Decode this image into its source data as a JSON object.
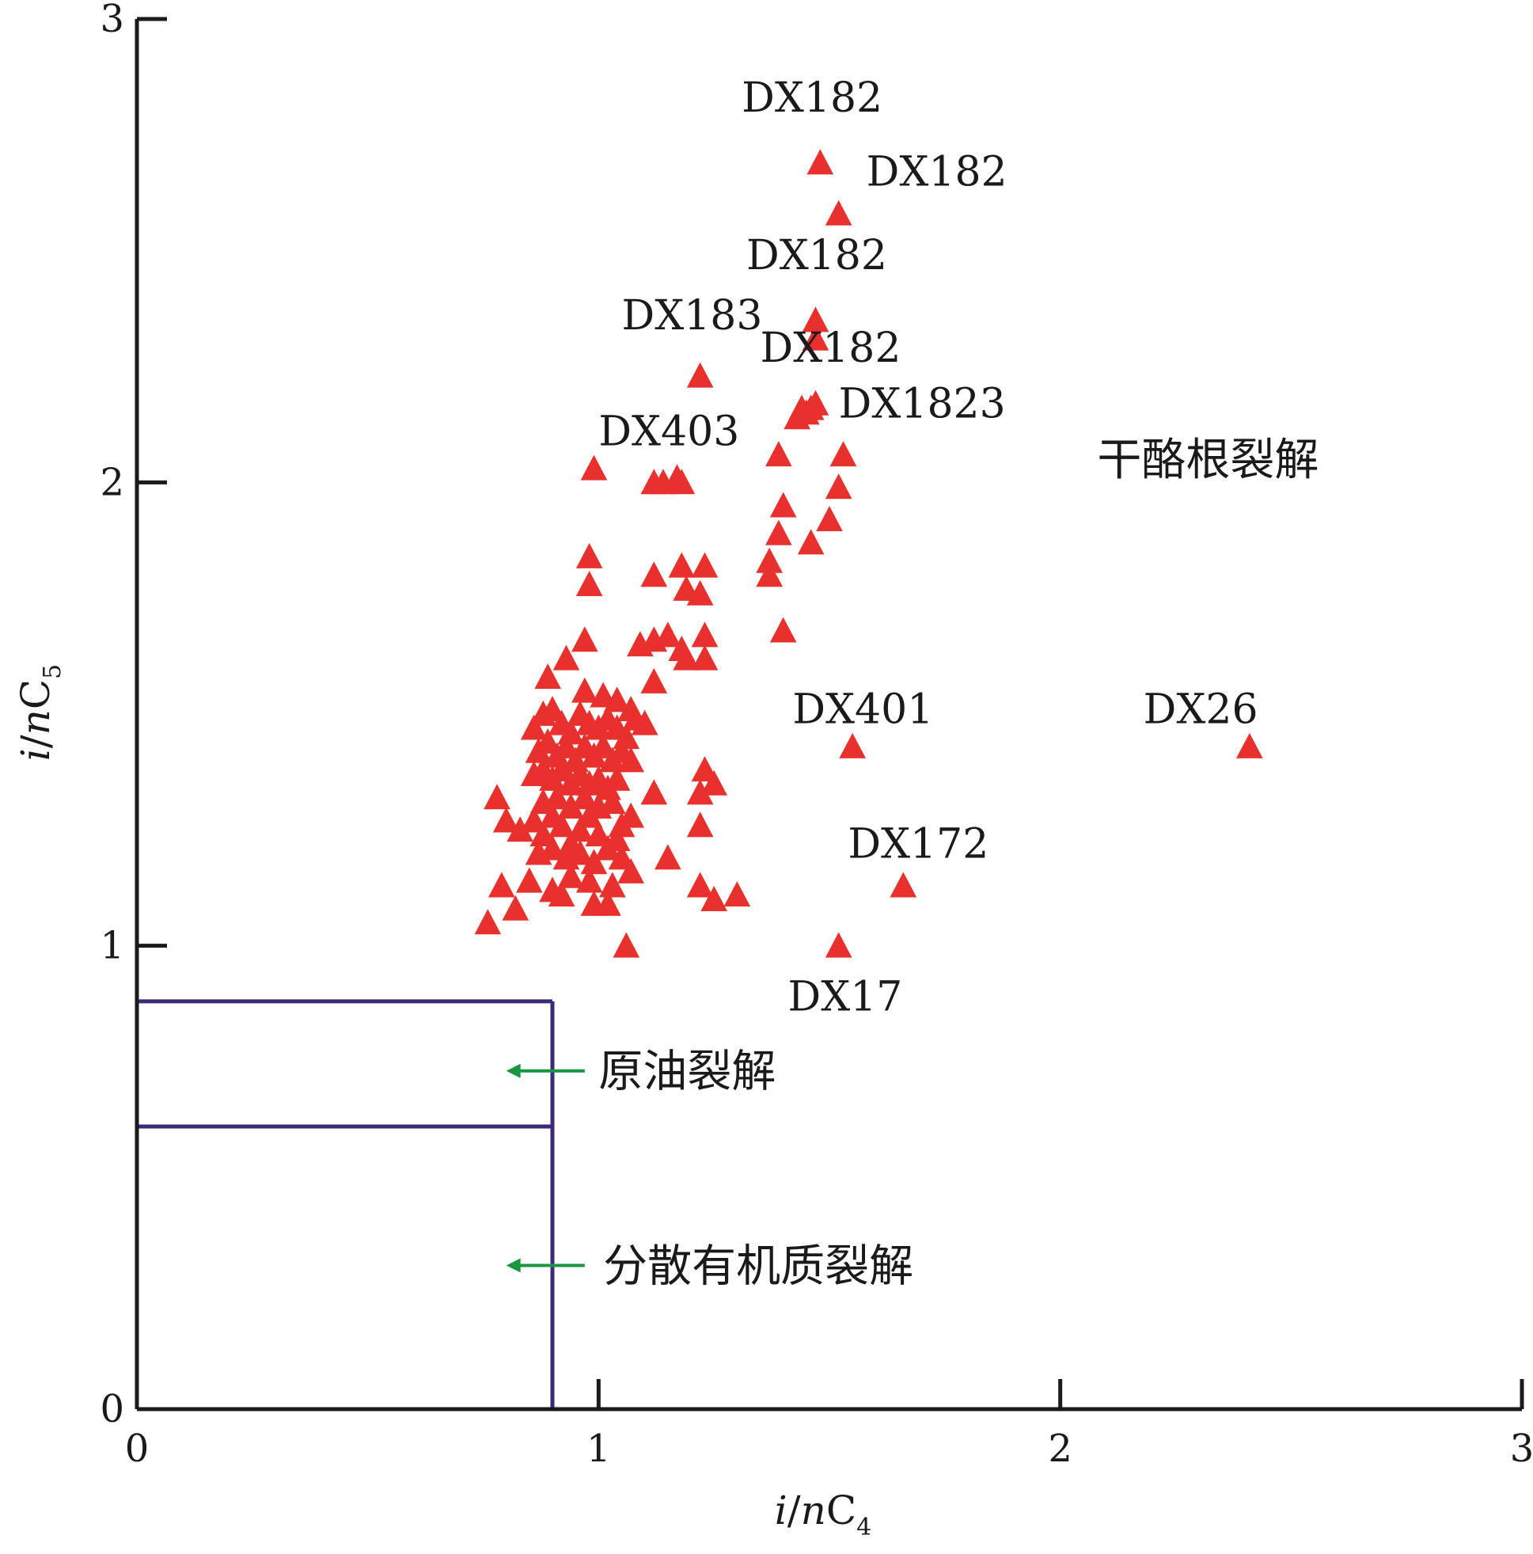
{
  "chart_data": {
    "type": "scatter",
    "xlabel": {
      "italic": "i",
      "slash": "/",
      "italic2": "n",
      "base": "C",
      "sub": "4"
    },
    "ylabel": {
      "italic": "i",
      "slash": "/",
      "italic2": "n",
      "base": "C",
      "sub": "5"
    },
    "xlim": [
      0,
      3
    ],
    "ylim": [
      0,
      3
    ],
    "xticks": [
      0,
      1,
      2,
      3
    ],
    "yticks": [
      0,
      1,
      2,
      3
    ],
    "xtick_labels": [
      "0",
      "1",
      "2",
      "3"
    ],
    "ytick_labels": [
      "0",
      "1",
      "2",
      "3"
    ],
    "grid": false,
    "marker": {
      "shape": "triangle",
      "color": "#e8302d"
    },
    "region_color": "#3b2a78",
    "arrow_color": "#1a9641",
    "regions": {
      "boundary_x": 0.9,
      "upper_y": 0.88,
      "lower_y": 0.61,
      "labels": [
        {
          "text": "干酪根裂解",
          "x": 2.08,
          "y": 2.05
        },
        {
          "text": "原油裂解",
          "x": 1.0,
          "y": 0.73,
          "arrow_from_x": 0.97,
          "arrow_to_x": 0.8
        },
        {
          "text": "分散有机质裂解",
          "x": 1.01,
          "y": 0.31,
          "arrow_from_x": 0.97,
          "arrow_to_x": 0.8
        }
      ]
    },
    "labeled_points": [
      {
        "label": "DX182",
        "x": 1.48,
        "y": 2.69,
        "label_x": 1.31,
        "label_y": 2.8
      },
      {
        "label": "DX182",
        "x": 1.52,
        "y": 2.58,
        "label_x": 1.58,
        "label_y": 2.64
      },
      {
        "label": "DX182",
        "x": 1.47,
        "y": 2.35,
        "label_x": 1.32,
        "label_y": 2.46
      },
      {
        "label": "DX182",
        "x": 1.47,
        "y": 2.31,
        "label_x": 1.35,
        "label_y": 2.26
      },
      {
        "label": "DX183",
        "x": 1.22,
        "y": 2.23,
        "label_x": 1.05,
        "label_y": 2.33
      },
      {
        "label": "DX1823",
        "x": 1.47,
        "y": 2.16,
        "label_x": 1.52,
        "label_y": 2.14
      },
      {
        "label": "DX403",
        "x": 0.99,
        "y": 2.03,
        "label_x": 1.0,
        "label_y": 2.08
      },
      {
        "label": "DX401",
        "x": 1.55,
        "y": 1.43,
        "label_x": 1.42,
        "label_y": 1.48
      },
      {
        "label": "DX26",
        "x": 2.41,
        "y": 1.43,
        "label_x": 2.18,
        "label_y": 1.48
      },
      {
        "label": "DX172",
        "x": 1.66,
        "y": 1.13,
        "label_x": 1.54,
        "label_y": 1.19
      },
      {
        "label": "DX17",
        "x": 1.52,
        "y": 1.0,
        "label_x": 1.41,
        "label_y": 0.86
      }
    ],
    "points": [
      [
        1.48,
        2.69
      ],
      [
        1.52,
        2.58
      ],
      [
        1.47,
        2.35
      ],
      [
        1.47,
        2.31
      ],
      [
        1.22,
        2.23
      ],
      [
        1.43,
        2.14
      ],
      [
        1.45,
        2.15
      ],
      [
        1.46,
        2.16
      ],
      [
        1.47,
        2.17
      ],
      [
        1.44,
        2.16
      ],
      [
        1.39,
        2.06
      ],
      [
        1.53,
        2.06
      ],
      [
        0.99,
        2.03
      ],
      [
        1.12,
        2.0
      ],
      [
        1.14,
        2.0
      ],
      [
        1.17,
        2.01
      ],
      [
        1.18,
        2.0
      ],
      [
        1.52,
        1.99
      ],
      [
        1.4,
        1.95
      ],
      [
        1.5,
        1.92
      ],
      [
        1.39,
        1.89
      ],
      [
        1.46,
        1.87
      ],
      [
        0.98,
        1.84
      ],
      [
        1.12,
        1.8
      ],
      [
        1.18,
        1.82
      ],
      [
        1.23,
        1.82
      ],
      [
        1.37,
        1.83
      ],
      [
        1.37,
        1.8
      ],
      [
        0.98,
        1.78
      ],
      [
        1.19,
        1.77
      ],
      [
        1.22,
        1.76
      ],
      [
        1.4,
        1.68
      ],
      [
        0.97,
        1.66
      ],
      [
        1.09,
        1.65
      ],
      [
        1.12,
        1.66
      ],
      [
        1.15,
        1.67
      ],
      [
        1.18,
        1.64
      ],
      [
        1.23,
        1.67
      ],
      [
        1.23,
        1.62
      ],
      [
        1.19,
        1.62
      ],
      [
        0.93,
        1.62
      ],
      [
        0.89,
        1.58
      ],
      [
        1.12,
        1.57
      ],
      [
        0.97,
        1.55
      ],
      [
        1.01,
        1.54
      ],
      [
        1.04,
        1.53
      ],
      [
        1.07,
        1.51
      ],
      [
        1.08,
        1.49
      ],
      [
        1.1,
        1.48
      ],
      [
        0.86,
        1.47
      ],
      [
        0.88,
        1.5
      ],
      [
        0.9,
        1.51
      ],
      [
        0.92,
        1.48
      ],
      [
        0.94,
        1.46
      ],
      [
        0.96,
        1.5
      ],
      [
        0.98,
        1.48
      ],
      [
        1.0,
        1.47
      ],
      [
        1.02,
        1.49
      ],
      [
        1.04,
        1.47
      ],
      [
        1.06,
        1.45
      ],
      [
        0.87,
        1.42
      ],
      [
        0.89,
        1.44
      ],
      [
        0.91,
        1.41
      ],
      [
        0.93,
        1.43
      ],
      [
        0.95,
        1.4
      ],
      [
        0.97,
        1.43
      ],
      [
        0.99,
        1.41
      ],
      [
        1.01,
        1.43
      ],
      [
        1.03,
        1.4
      ],
      [
        1.05,
        1.42
      ],
      [
        1.07,
        1.4
      ],
      [
        0.86,
        1.37
      ],
      [
        0.88,
        1.38
      ],
      [
        0.9,
        1.36
      ],
      [
        0.92,
        1.38
      ],
      [
        0.94,
        1.35
      ],
      [
        0.96,
        1.37
      ],
      [
        0.98,
        1.35
      ],
      [
        1.0,
        1.36
      ],
      [
        1.02,
        1.34
      ],
      [
        1.04,
        1.36
      ],
      [
        0.88,
        1.31
      ],
      [
        0.91,
        1.32
      ],
      [
        0.94,
        1.3
      ],
      [
        0.97,
        1.32
      ],
      [
        1.0,
        1.3
      ],
      [
        1.03,
        1.31
      ],
      [
        1.23,
        1.38
      ],
      [
        1.25,
        1.35
      ],
      [
        1.22,
        1.33
      ],
      [
        1.12,
        1.33
      ],
      [
        0.78,
        1.32
      ],
      [
        0.8,
        1.27
      ],
      [
        0.83,
        1.25
      ],
      [
        0.86,
        1.27
      ],
      [
        0.88,
        1.24
      ],
      [
        0.9,
        1.28
      ],
      [
        0.92,
        1.26
      ],
      [
        0.94,
        1.22
      ],
      [
        0.96,
        1.25
      ],
      [
        0.98,
        1.28
      ],
      [
        1.0,
        1.24
      ],
      [
        0.87,
        1.2
      ],
      [
        0.9,
        1.21
      ],
      [
        0.93,
        1.19
      ],
      [
        0.96,
        1.2
      ],
      [
        0.99,
        1.18
      ],
      [
        1.02,
        1.21
      ],
      [
        1.05,
        1.26
      ],
      [
        1.07,
        1.28
      ],
      [
        1.04,
        1.23
      ],
      [
        0.79,
        1.13
      ],
      [
        0.85,
        1.14
      ],
      [
        0.9,
        1.12
      ],
      [
        0.94,
        1.15
      ],
      [
        0.98,
        1.14
      ],
      [
        1.03,
        1.13
      ],
      [
        1.07,
        1.16
      ],
      [
        1.05,
        1.19
      ],
      [
        1.15,
        1.19
      ],
      [
        0.82,
        1.08
      ],
      [
        0.92,
        1.11
      ],
      [
        0.99,
        1.09
      ],
      [
        1.02,
        1.09
      ],
      [
        1.22,
        1.13
      ],
      [
        1.25,
        1.1
      ],
      [
        1.3,
        1.11
      ],
      [
        1.22,
        1.26
      ],
      [
        0.76,
        1.05
      ],
      [
        1.06,
        1.0
      ],
      [
        1.55,
        1.43
      ],
      [
        2.41,
        1.43
      ],
      [
        1.66,
        1.13
      ],
      [
        1.52,
        1.0
      ]
    ]
  }
}
